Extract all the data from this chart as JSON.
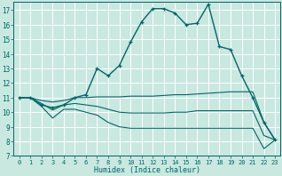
{
  "bg_color": "#c8e8e0",
  "grid_color": "#ffffff",
  "line_color": "#006666",
  "xlabel": "Humidex (Indice chaleur)",
  "xlim": [
    -0.5,
    23.5
  ],
  "ylim": [
    7.0,
    17.6
  ],
  "xticks": [
    0,
    1,
    2,
    3,
    4,
    5,
    6,
    7,
    8,
    9,
    10,
    11,
    12,
    13,
    14,
    15,
    16,
    17,
    18,
    19,
    20,
    21,
    22,
    23
  ],
  "yticks": [
    7,
    8,
    9,
    10,
    11,
    12,
    13,
    14,
    15,
    16,
    17
  ],
  "main_x": [
    0,
    1,
    2,
    3,
    4,
    5,
    6,
    7,
    8,
    9,
    10,
    11,
    12,
    13,
    14,
    15,
    16,
    17,
    18,
    19,
    20,
    21,
    22,
    23
  ],
  "main_y": [
    11.0,
    11.0,
    10.5,
    10.3,
    10.5,
    11.0,
    11.2,
    13.0,
    12.5,
    13.2,
    14.8,
    16.2,
    17.1,
    17.1,
    16.8,
    16.0,
    16.1,
    17.4,
    14.5,
    14.3,
    12.5,
    11.0,
    9.3,
    8.1
  ],
  "upper_x": [
    0,
    1,
    2,
    3,
    4,
    5,
    6,
    7,
    8,
    9,
    10,
    11,
    12,
    13,
    14,
    15,
    16,
    17,
    18,
    19,
    20,
    21,
    22,
    23
  ],
  "upper_y": [
    11.0,
    11.0,
    10.8,
    10.7,
    10.8,
    11.0,
    11.0,
    11.05,
    11.05,
    11.05,
    11.1,
    11.1,
    11.1,
    11.15,
    11.2,
    11.2,
    11.25,
    11.3,
    11.35,
    11.4,
    11.4,
    11.4,
    9.3,
    8.1
  ],
  "lower_x": [
    0,
    1,
    2,
    3,
    4,
    5,
    6,
    7,
    8,
    9,
    10,
    11,
    12,
    13,
    14,
    15,
    16,
    17,
    18,
    19,
    20,
    21,
    22,
    23
  ],
  "lower_y": [
    11.0,
    11.0,
    10.4,
    9.6,
    10.2,
    10.2,
    10.0,
    9.8,
    9.3,
    9.0,
    8.9,
    8.9,
    8.9,
    8.9,
    8.9,
    8.9,
    8.9,
    8.9,
    8.9,
    8.9,
    8.9,
    8.9,
    7.5,
    8.1
  ],
  "mid_x": [
    0,
    1,
    2,
    3,
    4,
    5,
    6,
    7,
    8,
    9,
    10,
    11,
    12,
    13,
    14,
    15,
    16,
    17,
    18,
    19,
    20,
    21,
    22,
    23
  ],
  "mid_y": [
    11.0,
    11.0,
    10.6,
    10.15,
    10.5,
    10.6,
    10.5,
    10.4,
    10.2,
    10.0,
    9.95,
    9.95,
    9.95,
    9.95,
    10.0,
    10.0,
    10.1,
    10.1,
    10.1,
    10.1,
    10.1,
    10.1,
    8.4,
    8.1
  ]
}
